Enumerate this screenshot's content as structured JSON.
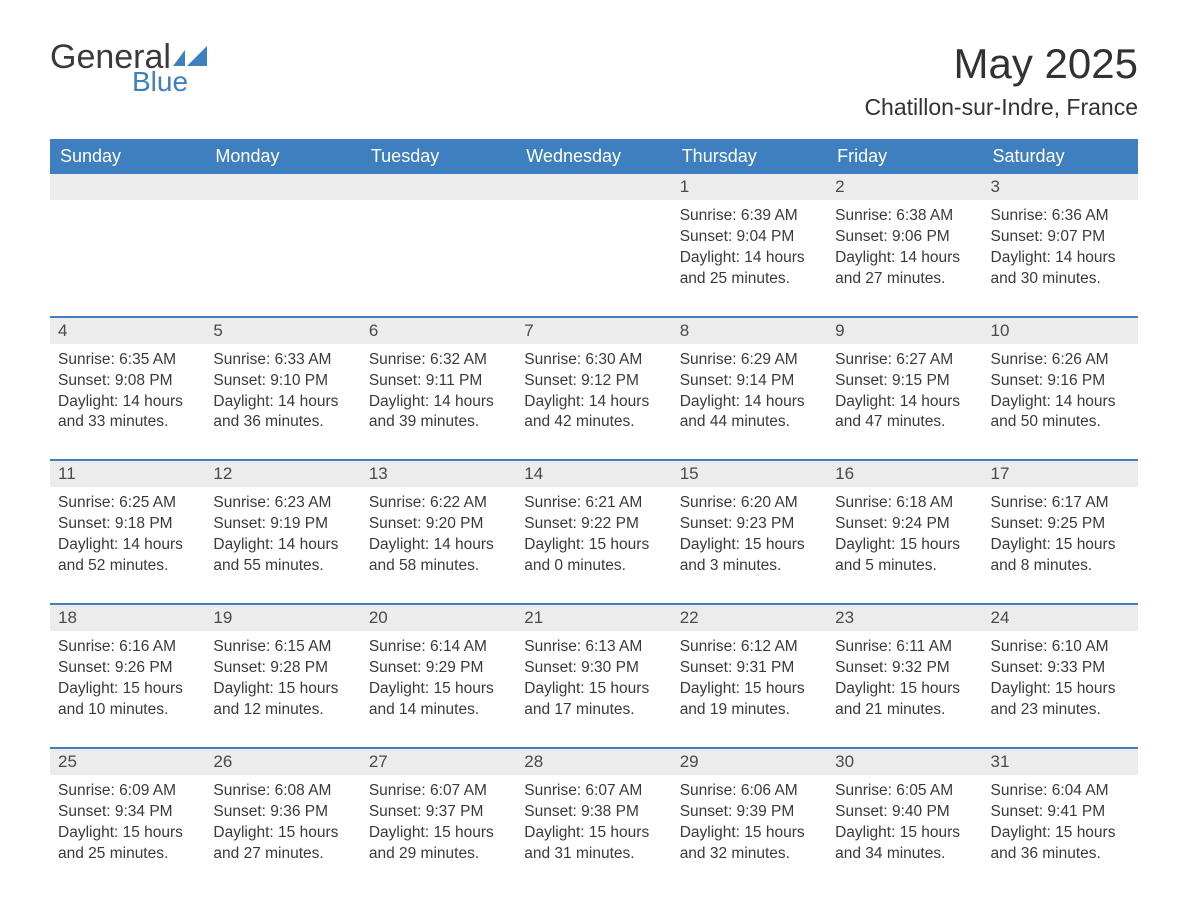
{
  "colors": {
    "header_bg": "#3e7fbf",
    "header_text": "#ffffff",
    "daynum_bg": "#ececec",
    "daynum_text": "#4a4a4a",
    "body_text": "#3a3a3a",
    "row_divider": "#3e7fbf",
    "logo_blue": "#3e7fbf",
    "page_bg": "#ffffff"
  },
  "typography": {
    "title_fontsize": 42,
    "location_fontsize": 23,
    "weekday_fontsize": 18,
    "daynum_fontsize": 17,
    "body_fontsize": 15.5,
    "font_family": "Arial"
  },
  "logo": {
    "line1": "General",
    "line2": "Blue"
  },
  "title": "May 2025",
  "location": "Chatillon-sur-Indre, France",
  "weekdays": [
    "Sunday",
    "Monday",
    "Tuesday",
    "Wednesday",
    "Thursday",
    "Friday",
    "Saturday"
  ],
  "weeks": [
    [
      {
        "day": "",
        "sunrise": "",
        "sunset": "",
        "daylight": ""
      },
      {
        "day": "",
        "sunrise": "",
        "sunset": "",
        "daylight": ""
      },
      {
        "day": "",
        "sunrise": "",
        "sunset": "",
        "daylight": ""
      },
      {
        "day": "",
        "sunrise": "",
        "sunset": "",
        "daylight": ""
      },
      {
        "day": "1",
        "sunrise": "Sunrise: 6:39 AM",
        "sunset": "Sunset: 9:04 PM",
        "daylight": "Daylight: 14 hours and 25 minutes."
      },
      {
        "day": "2",
        "sunrise": "Sunrise: 6:38 AM",
        "sunset": "Sunset: 9:06 PM",
        "daylight": "Daylight: 14 hours and 27 minutes."
      },
      {
        "day": "3",
        "sunrise": "Sunrise: 6:36 AM",
        "sunset": "Sunset: 9:07 PM",
        "daylight": "Daylight: 14 hours and 30 minutes."
      }
    ],
    [
      {
        "day": "4",
        "sunrise": "Sunrise: 6:35 AM",
        "sunset": "Sunset: 9:08 PM",
        "daylight": "Daylight: 14 hours and 33 minutes."
      },
      {
        "day": "5",
        "sunrise": "Sunrise: 6:33 AM",
        "sunset": "Sunset: 9:10 PM",
        "daylight": "Daylight: 14 hours and 36 minutes."
      },
      {
        "day": "6",
        "sunrise": "Sunrise: 6:32 AM",
        "sunset": "Sunset: 9:11 PM",
        "daylight": "Daylight: 14 hours and 39 minutes."
      },
      {
        "day": "7",
        "sunrise": "Sunrise: 6:30 AM",
        "sunset": "Sunset: 9:12 PM",
        "daylight": "Daylight: 14 hours and 42 minutes."
      },
      {
        "day": "8",
        "sunrise": "Sunrise: 6:29 AM",
        "sunset": "Sunset: 9:14 PM",
        "daylight": "Daylight: 14 hours and 44 minutes."
      },
      {
        "day": "9",
        "sunrise": "Sunrise: 6:27 AM",
        "sunset": "Sunset: 9:15 PM",
        "daylight": "Daylight: 14 hours and 47 minutes."
      },
      {
        "day": "10",
        "sunrise": "Sunrise: 6:26 AM",
        "sunset": "Sunset: 9:16 PM",
        "daylight": "Daylight: 14 hours and 50 minutes."
      }
    ],
    [
      {
        "day": "11",
        "sunrise": "Sunrise: 6:25 AM",
        "sunset": "Sunset: 9:18 PM",
        "daylight": "Daylight: 14 hours and 52 minutes."
      },
      {
        "day": "12",
        "sunrise": "Sunrise: 6:23 AM",
        "sunset": "Sunset: 9:19 PM",
        "daylight": "Daylight: 14 hours and 55 minutes."
      },
      {
        "day": "13",
        "sunrise": "Sunrise: 6:22 AM",
        "sunset": "Sunset: 9:20 PM",
        "daylight": "Daylight: 14 hours and 58 minutes."
      },
      {
        "day": "14",
        "sunrise": "Sunrise: 6:21 AM",
        "sunset": "Sunset: 9:22 PM",
        "daylight": "Daylight: 15 hours and 0 minutes."
      },
      {
        "day": "15",
        "sunrise": "Sunrise: 6:20 AM",
        "sunset": "Sunset: 9:23 PM",
        "daylight": "Daylight: 15 hours and 3 minutes."
      },
      {
        "day": "16",
        "sunrise": "Sunrise: 6:18 AM",
        "sunset": "Sunset: 9:24 PM",
        "daylight": "Daylight: 15 hours and 5 minutes."
      },
      {
        "day": "17",
        "sunrise": "Sunrise: 6:17 AM",
        "sunset": "Sunset: 9:25 PM",
        "daylight": "Daylight: 15 hours and 8 minutes."
      }
    ],
    [
      {
        "day": "18",
        "sunrise": "Sunrise: 6:16 AM",
        "sunset": "Sunset: 9:26 PM",
        "daylight": "Daylight: 15 hours and 10 minutes."
      },
      {
        "day": "19",
        "sunrise": "Sunrise: 6:15 AM",
        "sunset": "Sunset: 9:28 PM",
        "daylight": "Daylight: 15 hours and 12 minutes."
      },
      {
        "day": "20",
        "sunrise": "Sunrise: 6:14 AM",
        "sunset": "Sunset: 9:29 PM",
        "daylight": "Daylight: 15 hours and 14 minutes."
      },
      {
        "day": "21",
        "sunrise": "Sunrise: 6:13 AM",
        "sunset": "Sunset: 9:30 PM",
        "daylight": "Daylight: 15 hours and 17 minutes."
      },
      {
        "day": "22",
        "sunrise": "Sunrise: 6:12 AM",
        "sunset": "Sunset: 9:31 PM",
        "daylight": "Daylight: 15 hours and 19 minutes."
      },
      {
        "day": "23",
        "sunrise": "Sunrise: 6:11 AM",
        "sunset": "Sunset: 9:32 PM",
        "daylight": "Daylight: 15 hours and 21 minutes."
      },
      {
        "day": "24",
        "sunrise": "Sunrise: 6:10 AM",
        "sunset": "Sunset: 9:33 PM",
        "daylight": "Daylight: 15 hours and 23 minutes."
      }
    ],
    [
      {
        "day": "25",
        "sunrise": "Sunrise: 6:09 AM",
        "sunset": "Sunset: 9:34 PM",
        "daylight": "Daylight: 15 hours and 25 minutes."
      },
      {
        "day": "26",
        "sunrise": "Sunrise: 6:08 AM",
        "sunset": "Sunset: 9:36 PM",
        "daylight": "Daylight: 15 hours and 27 minutes."
      },
      {
        "day": "27",
        "sunrise": "Sunrise: 6:07 AM",
        "sunset": "Sunset: 9:37 PM",
        "daylight": "Daylight: 15 hours and 29 minutes."
      },
      {
        "day": "28",
        "sunrise": "Sunrise: 6:07 AM",
        "sunset": "Sunset: 9:38 PM",
        "daylight": "Daylight: 15 hours and 31 minutes."
      },
      {
        "day": "29",
        "sunrise": "Sunrise: 6:06 AM",
        "sunset": "Sunset: 9:39 PM",
        "daylight": "Daylight: 15 hours and 32 minutes."
      },
      {
        "day": "30",
        "sunrise": "Sunrise: 6:05 AM",
        "sunset": "Sunset: 9:40 PM",
        "daylight": "Daylight: 15 hours and 34 minutes."
      },
      {
        "day": "31",
        "sunrise": "Sunrise: 6:04 AM",
        "sunset": "Sunset: 9:41 PM",
        "daylight": "Daylight: 15 hours and 36 minutes."
      }
    ]
  ]
}
